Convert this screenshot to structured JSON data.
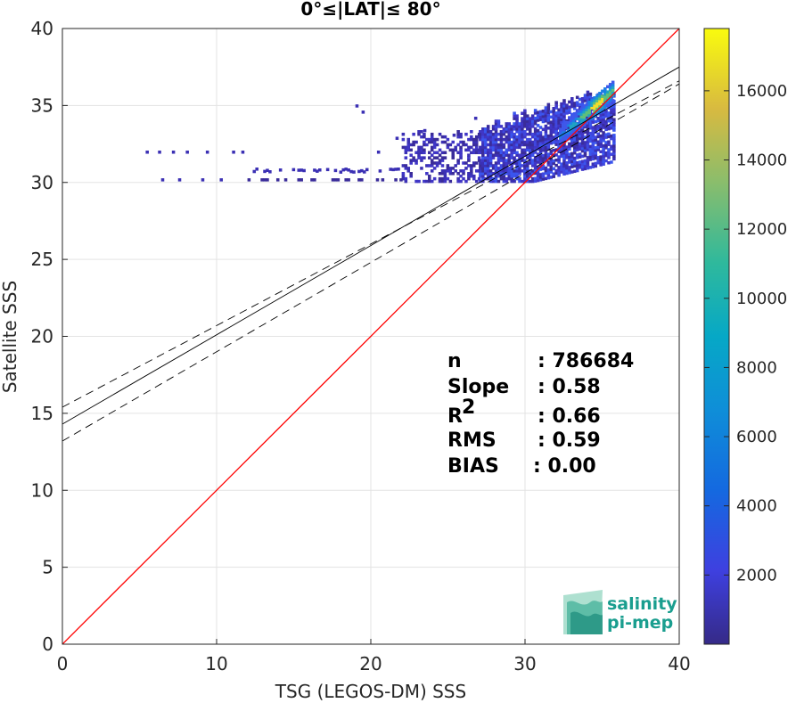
{
  "chart_data": {
    "type": "heatmap",
    "title": "0°≤|LAT|≤ 80°",
    "xlabel": "TSG (LEGOS-DM) SSS",
    "ylabel": "Satellite SSS",
    "xlim": [
      0,
      40
    ],
    "ylim": [
      0,
      40
    ],
    "x_ticks": [
      "0",
      "10",
      "20",
      "30",
      "40"
    ],
    "y_ticks": [
      "0",
      "5",
      "10",
      "15",
      "20",
      "25",
      "30",
      "35",
      "40"
    ],
    "grid": true,
    "colorbar": {
      "range": [
        0,
        17800
      ],
      "ticks": [
        "2000",
        "4000",
        "6000",
        "8000",
        "10000",
        "12000",
        "14000",
        "16000"
      ],
      "tick_values": [
        2000,
        4000,
        6000,
        8000,
        10000,
        12000,
        14000,
        16000
      ],
      "colormap": "parula"
    },
    "lines": [
      {
        "kind": "one-to-one",
        "color": "#ff0000",
        "intercept": 0,
        "slope": 1
      },
      {
        "kind": "regression",
        "color": "#000000",
        "intercept": 14.3,
        "slope": 0.58
      },
      {
        "kind": "regression-upper",
        "color": "#000000",
        "dashed": true,
        "intercept": 15.4,
        "slope": 0.53
      },
      {
        "kind": "regression-lower",
        "color": "#000000",
        "dashed": true,
        "intercept": 13.2,
        "slope": 0.58
      }
    ],
    "density_core": {
      "x_range": [
        18.8,
        35.9
      ],
      "y_range": [
        30.0,
        35.8
      ],
      "peak": [
        34.6,
        35.0
      ]
    },
    "stats": [
      {
        "label": "n",
        "value": ": 786684"
      },
      {
        "label": "Slope",
        "value": ": 0.58"
      },
      {
        "label": "R",
        "sup": "2",
        "value": ": 0.66"
      },
      {
        "label": "RMS",
        "value": ": 0.59"
      },
      {
        "label": "BIAS",
        "value": ": 0.00"
      }
    ]
  },
  "logo": {
    "line1": "salinity",
    "line2": "pi-mep"
  }
}
